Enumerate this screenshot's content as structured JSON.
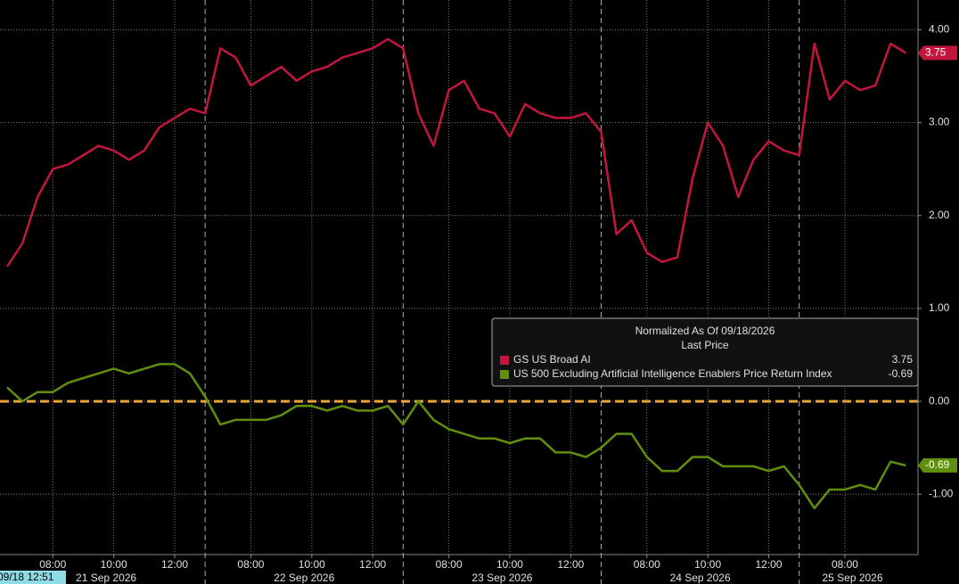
{
  "chart_data": {
    "type": "line",
    "legend_title": "Normalized As Of 09/18/2026",
    "legend_subtitle": "Last Price",
    "start_label": "09/18 12:51",
    "xlim": [
      0,
      59.8
    ],
    "ylim": [
      -1.65,
      4.32
    ],
    "yticks": [
      {
        "value": 4,
        "label": "4.00"
      },
      {
        "value": 3,
        "label": "3.00"
      },
      {
        "value": 2,
        "label": "2.00"
      },
      {
        "value": 1,
        "label": "1.00"
      },
      {
        "value": 0,
        "label": "0.00"
      },
      {
        "value": -1,
        "label": "-1.00"
      }
    ],
    "xticks": [
      {
        "value": 3,
        "label": "08:00"
      },
      {
        "value": 7,
        "label": "10:00"
      },
      {
        "value": 11,
        "label": "12:00"
      },
      {
        "value": 16,
        "label": "08:00"
      },
      {
        "value": 20,
        "label": "10:00"
      },
      {
        "value": 24,
        "label": "12:00"
      },
      {
        "value": 29,
        "label": "08:00"
      },
      {
        "value": 33,
        "label": "10:00"
      },
      {
        "value": 37,
        "label": "12:00"
      },
      {
        "value": 42,
        "label": "08:00"
      },
      {
        "value": 46,
        "label": "10:00"
      },
      {
        "value": 50,
        "label": "12:00"
      },
      {
        "value": 55,
        "label": "08:00"
      }
    ],
    "day_ticks": [
      {
        "value": 6.5,
        "label": "21 Sep 2026"
      },
      {
        "value": 19.5,
        "label": "22 Sep 2026"
      },
      {
        "value": 32.5,
        "label": "23 Sep 2026"
      },
      {
        "value": 45.5,
        "label": "24 Sep 2026"
      },
      {
        "value": 55.5,
        "label": "25 Sep 2026"
      }
    ],
    "zero_line_color": "#e8a33a",
    "grid": true,
    "series": [
      {
        "name": "GS US Broad AI",
        "color": "#c4163c",
        "last_label": "3.75",
        "values": [
          1.45,
          1.7,
          2.2,
          2.5,
          2.55,
          2.65,
          2.75,
          2.7,
          2.6,
          2.7,
          2.95,
          3.05,
          3.15,
          3.1,
          3.8,
          3.7,
          3.4,
          3.5,
          3.6,
          3.45,
          3.55,
          3.6,
          3.7,
          3.75,
          3.8,
          3.9,
          3.8,
          3.1,
          2.75,
          3.35,
          3.45,
          3.15,
          3.1,
          2.85,
          3.2,
          3.1,
          3.05,
          3.05,
          3.1,
          2.9,
          1.8,
          1.95,
          1.6,
          1.5,
          1.55,
          2.4,
          3.0,
          2.75,
          2.2,
          2.6,
          2.8,
          2.7,
          2.65,
          3.85,
          3.25,
          3.45,
          3.35,
          3.4,
          3.85,
          3.75
        ]
      },
      {
        "name": "US 500 Excluding Artificial Intelligence Enablers Price Return Index",
        "color": "#5f8f0c",
        "last_label": "-0.69",
        "values": [
          0.15,
          0.0,
          0.1,
          0.1,
          0.2,
          0.25,
          0.3,
          0.35,
          0.3,
          0.35,
          0.4,
          0.4,
          0.3,
          0.05,
          -0.25,
          -0.2,
          -0.2,
          -0.2,
          -0.15,
          -0.05,
          -0.05,
          -0.1,
          -0.05,
          -0.1,
          -0.1,
          -0.05,
          -0.25,
          0.0,
          -0.2,
          -0.3,
          -0.35,
          -0.4,
          -0.4,
          -0.45,
          -0.4,
          -0.4,
          -0.55,
          -0.55,
          -0.6,
          -0.5,
          -0.35,
          -0.35,
          -0.6,
          -0.75,
          -0.75,
          -0.6,
          -0.6,
          -0.7,
          -0.7,
          -0.7,
          -0.75,
          -0.7,
          -0.9,
          -1.15,
          -0.95,
          -0.95,
          -0.9,
          -0.95,
          -0.65,
          -0.69
        ]
      }
    ]
  }
}
